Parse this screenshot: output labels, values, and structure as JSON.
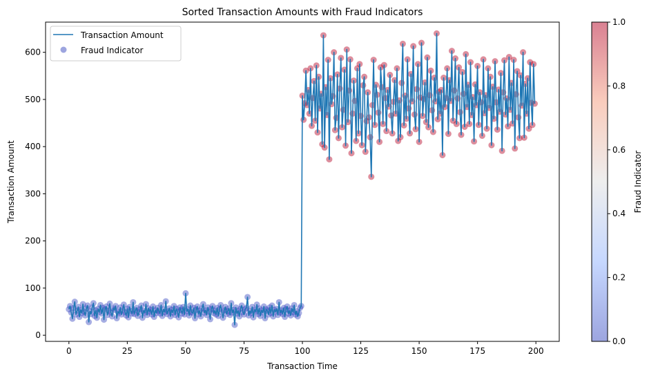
{
  "chart_data": {
    "type": "line",
    "title": "Sorted Transaction Amounts with Fraud Indicators",
    "xlabel": "Transaction Time",
    "ylabel": "Transaction Amount",
    "xlim": [
      -10,
      210
    ],
    "ylim": [
      -13,
      664
    ],
    "xticks": [
      0,
      25,
      50,
      75,
      100,
      125,
      150,
      175,
      200
    ],
    "yticks": [
      0,
      100,
      200,
      300,
      400,
      500,
      600
    ],
    "grid": false,
    "legend": {
      "position": "upper left",
      "entries": [
        {
          "label": "Transaction Amount",
          "marker": "line",
          "color": "#1f77b4"
        },
        {
          "label": "Fraud Indicator",
          "marker": "circle",
          "color": "#3b4cc0"
        }
      ]
    },
    "colorbar": {
      "label": "Fraud Indicator",
      "cmap": "coolwarm",
      "range": [
        0.0,
        1.0
      ],
      "ticks": [
        "0.0",
        "0.2",
        "0.4",
        "0.6",
        "0.8",
        "1.0"
      ],
      "alpha": 0.5
    },
    "colors": {
      "line": "#1f77b4",
      "fraud_0": "#3b4cc0",
      "fraud_1": "#b40426"
    },
    "series": [
      {
        "name": "Transaction Amount (non-fraud, fraud=0)",
        "fraud": 0,
        "x_start": 0,
        "x_step": 0.5,
        "values": [
          55,
          62,
          48,
          35,
          58,
          71,
          44,
          52,
          60,
          39,
          54,
          47,
          66,
          50,
          42,
          57,
          63,
          28,
          51,
          45,
          59,
          68,
          41,
          53,
          37,
          56,
          49,
          64,
          46,
          58,
          33,
          55,
          61,
          43,
          52,
          67,
          48,
          40,
          57,
          54,
          62,
          36,
          50,
          47,
          59,
          44,
          53,
          65,
          49,
          42,
          56,
          38,
          60,
          51,
          46,
          70,
          45,
          53,
          58,
          41,
          49,
          55,
          63,
          37,
          52,
          48,
          66,
          43,
          57,
          50,
          54,
          44,
          61,
          39,
          53,
          47,
          58,
          52,
          46,
          64,
          41,
          55,
          49,
          72,
          45,
          51,
          57,
          40,
          54,
          48,
          62,
          43,
          56,
          50,
          38,
          59,
          53,
          46,
          60,
          44,
          89,
          51,
          55,
          42,
          63,
          49,
          47,
          58,
          36,
          54,
          61,
          45,
          52,
          40,
          57,
          66,
          48,
          53,
          43,
          59,
          50,
          34,
          56,
          62,
          47,
          52,
          44,
          58,
          41,
          55,
          64,
          49,
          37,
          53,
          60,
          45,
          51,
          57,
          43,
          68,
          48,
          54,
          22,
          59,
          46,
          52,
          40,
          56,
          63,
          49,
          44,
          55,
          58,
          81,
          42,
          51,
          47,
          60,
          38,
          54,
          50,
          65,
          45,
          57,
          41,
          53,
          48,
          61,
          36,
          55,
          52,
          44,
          59,
          47,
          63,
          40,
          54,
          50,
          56,
          43,
          70,
          48,
          53,
          45,
          58,
          39,
          55,
          61,
          46,
          52,
          42,
          57,
          49,
          64,
          44,
          51,
          40,
          47,
          58,
          62
        ]
      },
      {
        "name": "Transaction Amount (fraud, fraud=1)",
        "fraud": 1,
        "x_start": 100,
        "x_step": 0.5,
        "values": [
          508,
          457,
          492,
          561,
          488,
          520,
          470,
          566,
          444,
          503,
          539,
          455,
          572,
          430,
          548,
          481,
          512,
          405,
          636,
          398,
          526,
          467,
          584,
          373,
          545,
          490,
          507,
          600,
          435,
          461,
          553,
          418,
          523,
          588,
          441,
          478,
          563,
          402,
          606,
          452,
          519,
          585,
          386,
          470,
          540,
          497,
          412,
          566,
          428,
          575,
          465,
          403,
          530,
          548,
          389,
          454,
          515,
          462,
          420,
          336,
          488,
          584,
          446,
          531,
          510,
          472,
          410,
          568,
          526,
          448,
          573,
          503,
          433,
          520,
          485,
          552,
          466,
          428,
          495,
          541,
          470,
          566,
          412,
          498,
          420,
          535,
          618,
          445,
          508,
          459,
          585,
          481,
          428,
          554,
          496,
          613,
          468,
          437,
          522,
          575,
          410,
          504,
          620,
          465,
          501,
          536,
          452,
          589,
          441,
          509,
          561,
          477,
          431,
          546,
          496,
          640,
          458,
          516,
          470,
          520,
          382,
          546,
          484,
          503,
          566,
          427,
          541,
          497,
          603,
          455,
          519,
          587,
          448,
          502,
          568,
          473,
          425,
          558,
          512,
          442,
          596,
          484,
          531,
          448,
          579,
          467,
          505,
          411,
          532,
          488,
          571,
          446,
          515,
          494,
          423,
          585,
          471,
          509,
          438,
          566,
          482,
          548,
          403,
          527,
          459,
          581,
          494,
          436,
          521,
          474,
          556,
          391,
          515,
          583,
          468,
          502,
          443,
          590,
          478,
          535,
          449,
          584,
          396,
          511,
          560,
          462,
          418,
          551,
          487,
          600,
          419,
          533,
          470,
          545,
          438,
          579,
          493,
          446,
          575,
          491
        ]
      }
    ]
  }
}
